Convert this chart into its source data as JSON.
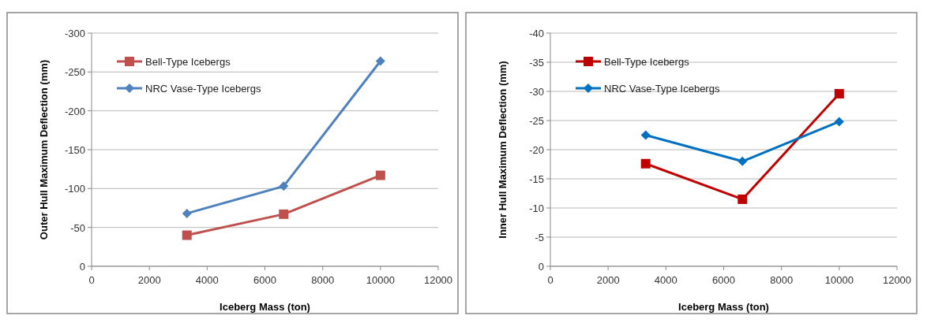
{
  "chart_data": [
    {
      "type": "line",
      "xlabel": "Iceberg Mass (ton)",
      "ylabel": "Outer Hull Maximum Deflection (mm)",
      "x": [
        3300,
        6650,
        10000
      ],
      "xlim": [
        0,
        12000
      ],
      "xticks": [
        0,
        2000,
        4000,
        6000,
        8000,
        10000,
        12000
      ],
      "ylim": [
        0,
        -300
      ],
      "yticks": [
        0,
        -50,
        -100,
        -150,
        -200,
        -250,
        -300
      ],
      "grid": "y",
      "legend": "top left",
      "series": [
        {
          "name": "Bell-Type Icebergs",
          "color": "#c0504d",
          "marker": "square",
          "values": [
            -40,
            -67,
            -117
          ]
        },
        {
          "name": "NRC Vase-Type Icebergs",
          "color": "#4f81bd",
          "marker": "diamond",
          "values": [
            -68,
            -103,
            -264
          ]
        }
      ]
    },
    {
      "type": "line",
      "xlabel": "Iceberg Mass (ton)",
      "ylabel": "Inner Hull Maximum Deflection (mm)",
      "x": [
        3300,
        6650,
        10000
      ],
      "xlim": [
        0,
        12000
      ],
      "xticks": [
        0,
        2000,
        4000,
        6000,
        8000,
        10000,
        12000
      ],
      "ylim": [
        0,
        -40
      ],
      "yticks": [
        0,
        -5,
        -10,
        -15,
        -20,
        -25,
        -30,
        -35,
        -40
      ],
      "grid": "y",
      "legend": "top left",
      "series": [
        {
          "name": "Bell-Type Icebergs",
          "color": "#c00000",
          "marker": "square",
          "values": [
            -17.6,
            -11.5,
            -29.6
          ]
        },
        {
          "name": "NRC Vase-Type Icebergs",
          "color": "#0070c0",
          "marker": "diamond",
          "values": [
            -22.5,
            -18,
            -24.8
          ]
        }
      ]
    }
  ]
}
